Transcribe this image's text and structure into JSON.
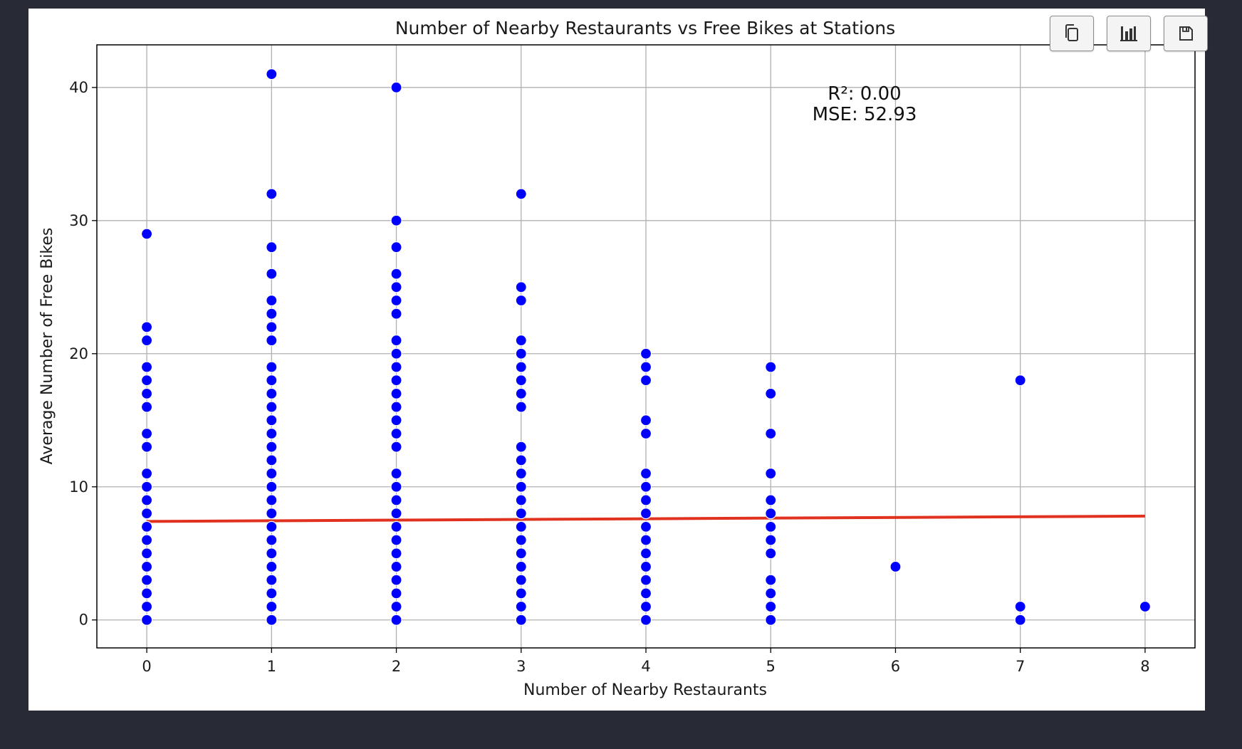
{
  "colors": {
    "background": "#282a36",
    "panel": "#ffffff",
    "points": "#0000ff",
    "regression_line": "#e0321e",
    "grid": "#b0b0b0"
  },
  "toolbar": {
    "copy_icon": "copy-icon",
    "chart_icon": "bar-chart-icon",
    "save_icon": "save-icon"
  },
  "chart_data": {
    "type": "scatter",
    "title": "Number of Nearby Restaurants vs Free Bikes at Stations",
    "xlabel": "Number of Nearby Restaurants",
    "ylabel": "Average Number of Free Bikes",
    "xlim": [
      -0.4,
      8.4
    ],
    "ylim": [
      -2.1,
      43.2
    ],
    "xticks": [
      0,
      1,
      2,
      3,
      4,
      5,
      6,
      7,
      8
    ],
    "yticks": [
      0,
      10,
      20,
      30,
      40
    ],
    "grid": true,
    "points": [
      {
        "x": 0,
        "y": [
          0,
          1,
          2,
          3,
          4,
          5,
          6,
          7,
          8,
          9,
          10,
          11,
          13,
          14,
          16,
          17,
          18,
          19,
          21,
          22,
          29
        ]
      },
      {
        "x": 1,
        "y": [
          0,
          1,
          2,
          3,
          4,
          5,
          6,
          7,
          8,
          9,
          10,
          11,
          12,
          13,
          14,
          15,
          16,
          17,
          18,
          19,
          21,
          22,
          23,
          24,
          26,
          28,
          32,
          41
        ]
      },
      {
        "x": 2,
        "y": [
          0,
          1,
          2,
          3,
          4,
          5,
          6,
          7,
          8,
          9,
          10,
          11,
          13,
          14,
          15,
          16,
          17,
          18,
          19,
          20,
          21,
          23,
          24,
          25,
          26,
          28,
          30,
          40
        ]
      },
      {
        "x": 3,
        "y": [
          0,
          1,
          2,
          3,
          4,
          5,
          6,
          7,
          8,
          9,
          10,
          11,
          12,
          13,
          16,
          17,
          18,
          19,
          20,
          21,
          24,
          25,
          32
        ]
      },
      {
        "x": 4,
        "y": [
          0,
          1,
          2,
          3,
          4,
          5,
          6,
          7,
          8,
          9,
          10,
          11,
          14,
          15,
          18,
          19,
          20
        ]
      },
      {
        "x": 5,
        "y": [
          0,
          1,
          2,
          3,
          5,
          6,
          7,
          8,
          9,
          11,
          14,
          17,
          19
        ]
      },
      {
        "x": 6,
        "y": [
          4
        ]
      },
      {
        "x": 7,
        "y": [
          0,
          1,
          18
        ]
      },
      {
        "x": 8,
        "y": [
          1
        ]
      }
    ],
    "regression_line": {
      "x": [
        0,
        8
      ],
      "y": [
        7.4,
        7.8
      ]
    },
    "annotations": [
      "R²: 0.00",
      "MSE: 52.93"
    ]
  }
}
